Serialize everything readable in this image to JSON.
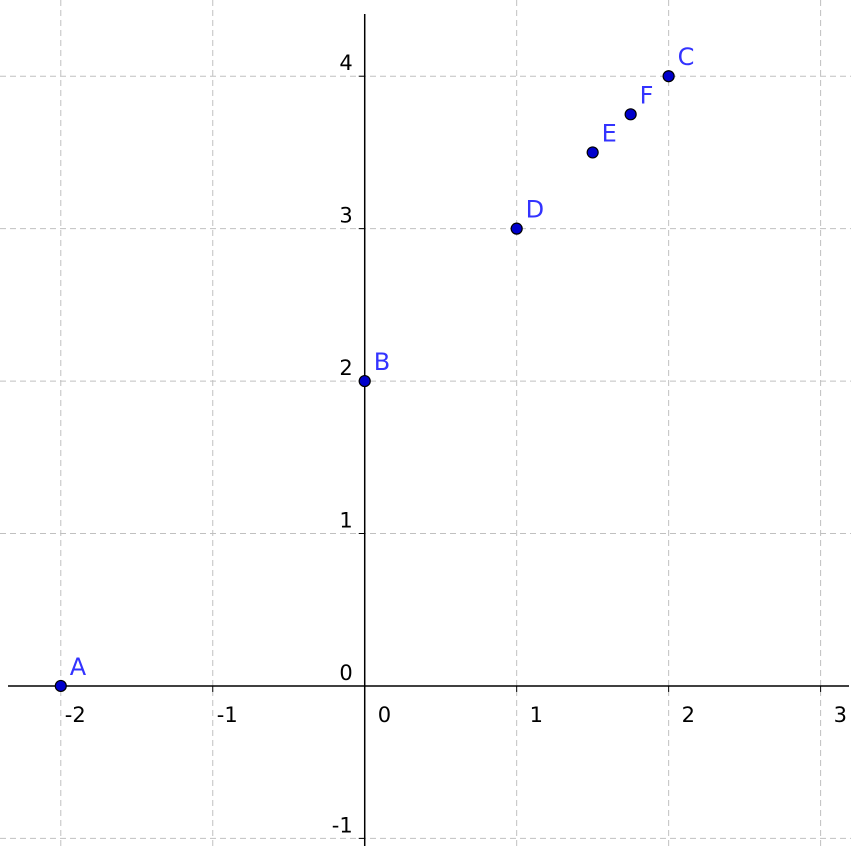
{
  "chart_data": {
    "type": "scatter",
    "xlim": [
      -2.4,
      3.2
    ],
    "ylim": [
      -1.05,
      4.5
    ],
    "grid": true,
    "x_ticks": [
      -2,
      -1,
      0,
      1,
      2,
      3
    ],
    "y_ticks": [
      -1,
      0,
      1,
      2,
      3,
      4
    ],
    "x_tick_labels": [
      "-2",
      "-1",
      "0",
      "1",
      "2",
      "3"
    ],
    "y_tick_labels": [
      "-1",
      "0",
      "1",
      "2",
      "3",
      "4"
    ],
    "points": [
      {
        "label": "A",
        "x": -2,
        "y": 0
      },
      {
        "label": "B",
        "x": 0,
        "y": 2
      },
      {
        "label": "C",
        "x": 2,
        "y": 4
      },
      {
        "label": "D",
        "x": 1,
        "y": 3
      },
      {
        "label": "E",
        "x": 1.5,
        "y": 3.5
      },
      {
        "label": "F",
        "x": 1.75,
        "y": 3.75
      }
    ]
  },
  "colors": {
    "point_fill": "#0000cc",
    "point_label": "#3333ff",
    "grid": "#c0c0c0",
    "axis": "#000000"
  }
}
